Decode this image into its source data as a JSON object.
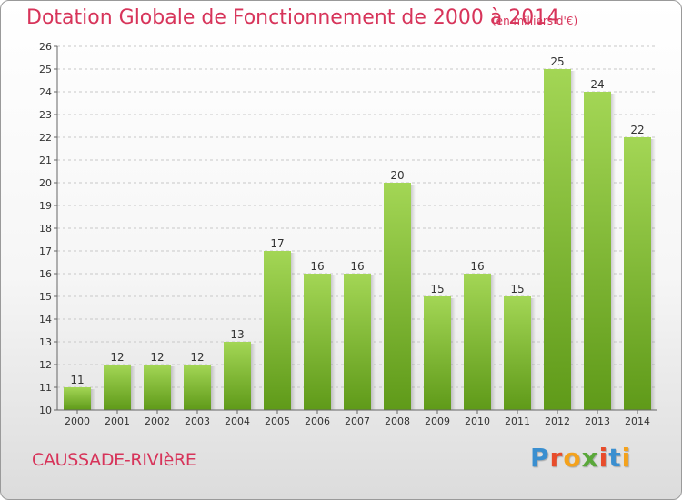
{
  "title": "Dotation Globale de Fonctionnement de 2000 à 2014",
  "subtitle": "(en milliers d'€)",
  "commune": "CAUSSADE-RIVIèRE",
  "logo": {
    "letters": [
      "P",
      "r",
      "o",
      "x",
      "i",
      "t",
      "i"
    ],
    "colors": [
      "#3a8fd0",
      "#e84c2b",
      "#f4a21c",
      "#5aa83a",
      "#e84c2b",
      "#3a8fd0",
      "#f4a21c"
    ]
  },
  "colors": {
    "title": "#d7345a",
    "bar_top": "#a3d655",
    "bar_bottom": "#5f9a19"
  },
  "chart_data": {
    "type": "bar",
    "title": "Dotation Globale de Fonctionnement de 2000 à 2014",
    "subtitle": "(en milliers d'€)",
    "categories": [
      "2000",
      "2001",
      "2002",
      "2003",
      "2004",
      "2005",
      "2006",
      "2007",
      "2008",
      "2009",
      "2010",
      "2011",
      "2012",
      "2013",
      "2014"
    ],
    "values": [
      11,
      12,
      12,
      12,
      13,
      17,
      16,
      16,
      20,
      15,
      16,
      15,
      25,
      24,
      22
    ],
    "ylim": [
      10,
      26
    ],
    "yticks": [
      10,
      11,
      12,
      13,
      14,
      15,
      16,
      17,
      18,
      19,
      20,
      21,
      22,
      23,
      24,
      25,
      26
    ],
    "grid": true,
    "xlabel": "",
    "ylabel": ""
  }
}
